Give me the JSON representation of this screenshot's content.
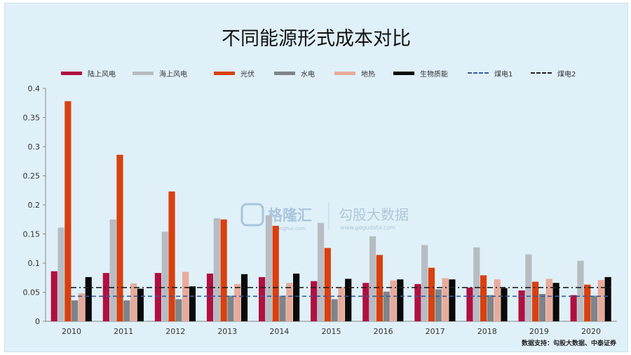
{
  "chart_data": {
    "type": "bar",
    "title": "不同能源形式成本对比",
    "categories": [
      "2010",
      "2011",
      "2012",
      "2013",
      "2014",
      "2015",
      "2016",
      "2017",
      "2018",
      "2019",
      "2020"
    ],
    "ylim": [
      0,
      0.4
    ],
    "yticks": [
      "0",
      "0.05",
      "0.1",
      "0.15",
      "0.2",
      "0.25",
      "0.3",
      "0.35",
      "0.4"
    ],
    "legend_position": "top",
    "series": [
      {
        "name": "陆上风电",
        "color": "#b01040",
        "values": [
          0.086,
          0.083,
          0.083,
          0.082,
          0.076,
          0.069,
          0.066,
          0.064,
          0.058,
          0.053,
          0.045
        ]
      },
      {
        "name": "海上风电",
        "color": "#b7bcc2",
        "values": [
          0.161,
          0.175,
          0.154,
          0.177,
          0.182,
          0.169,
          0.146,
          0.131,
          0.127,
          0.115,
          0.104
        ]
      },
      {
        "name": "光伏",
        "color": "#d9400e",
        "values": [
          0.378,
          0.286,
          0.223,
          0.175,
          0.164,
          0.126,
          0.114,
          0.092,
          0.079,
          0.068,
          0.063
        ]
      },
      {
        "name": "水电",
        "color": "#7e8488",
        "values": [
          0.036,
          0.036,
          0.038,
          0.044,
          0.044,
          0.038,
          0.051,
          0.055,
          0.045,
          0.047,
          0.044
        ]
      },
      {
        "name": "地热",
        "color": "#e9aa9a",
        "values": [
          0.048,
          0.065,
          0.085,
          0.064,
          0.066,
          0.059,
          0.07,
          0.074,
          0.072,
          0.073,
          0.071
        ]
      },
      {
        "name": "生物质能",
        "color": "#0a0a0a",
        "values": [
          0.076,
          0.056,
          0.06,
          0.081,
          0.082,
          0.073,
          0.072,
          0.072,
          0.057,
          0.066,
          0.076
        ]
      }
    ],
    "lines": [
      {
        "name": "煤电1",
        "style": "dashed",
        "color": "#3a5a9a",
        "value": 0.043
      },
      {
        "name": "煤电2",
        "style": "dash-dot",
        "color": "#222222",
        "value": 0.058
      }
    ]
  },
  "watermark": {
    "brand_cn": "格隆汇",
    "brand_url": "gelonghui.com",
    "partner_cn": "勾股大数据",
    "partner_url": "www.gogudata.com"
  },
  "source_text": "数据支持：勾股大数据、中泰证券"
}
